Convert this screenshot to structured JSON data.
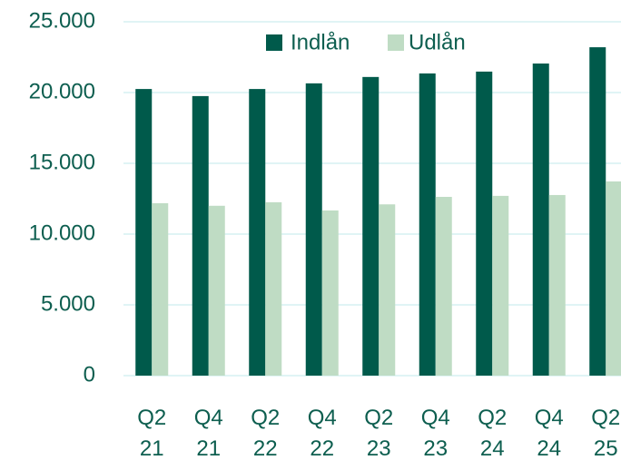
{
  "chart_data": {
    "type": "bar",
    "categories": [
      "Q2 21",
      "Q4 21",
      "Q2 22",
      "Q4 22",
      "Q2 23",
      "Q4 23",
      "Q2 24",
      "Q4 24",
      "Q2 25"
    ],
    "series": [
      {
        "name": "Indlån",
        "color": "#005a4b",
        "values": [
          20250,
          19750,
          20250,
          20650,
          21100,
          21350,
          21480,
          22050,
          23200
        ]
      },
      {
        "name": "Udlån",
        "color": "#bfdcc4",
        "values": [
          12180,
          12000,
          12250,
          11670,
          12100,
          12630,
          12700,
          12760,
          13720
        ]
      }
    ],
    "ylim": [
      0,
      25000
    ],
    "yticks": [
      0,
      {
        "value": 5000,
        "label": "5.000"
      },
      {
        "value": 10000,
        "label": "10.000"
      },
      {
        "value": 15000,
        "label": "15.000"
      },
      {
        "value": 20000,
        "label": "20.000"
      },
      {
        "value": 25000,
        "label": "25.000"
      }
    ],
    "grid": true,
    "legend": "top"
  }
}
